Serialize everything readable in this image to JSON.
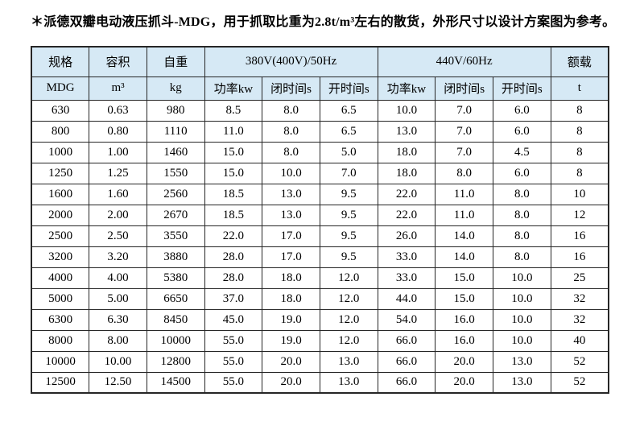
{
  "title": "＊派德双瓣电动液压抓斗-MDG，用于抓取比重为2.8t/m³左右的散货，外形尺寸以设计方案图为参考。",
  "table": {
    "group_headers": {
      "spec": "规格",
      "capacity": "容积",
      "weight": "自重",
      "v380": "380V(400V)/50Hz",
      "v440": "440V/60Hz",
      "load": "额载"
    },
    "unit_headers": {
      "spec": "MDG",
      "capacity": "m³",
      "weight": "kg",
      "v380_power": "功率kw",
      "v380_close": "闭时间s",
      "v380_open": "开时间s",
      "v440_power": "功率kw",
      "v440_close": "闭时间s",
      "v440_open": "开时间s",
      "load": "t"
    },
    "rows": [
      [
        "630",
        "0.63",
        "980",
        "8.5",
        "8.0",
        "6.5",
        "10.0",
        "7.0",
        "6.0",
        "8"
      ],
      [
        "800",
        "0.80",
        "1110",
        "11.0",
        "8.0",
        "6.5",
        "13.0",
        "7.0",
        "6.0",
        "8"
      ],
      [
        "1000",
        "1.00",
        "1460",
        "15.0",
        "8.0",
        "5.0",
        "18.0",
        "7.0",
        "4.5",
        "8"
      ],
      [
        "1250",
        "1.25",
        "1550",
        "15.0",
        "10.0",
        "7.0",
        "18.0",
        "8.0",
        "6.0",
        "8"
      ],
      [
        "1600",
        "1.60",
        "2560",
        "18.5",
        "13.0",
        "9.5",
        "22.0",
        "11.0",
        "8.0",
        "10"
      ],
      [
        "2000",
        "2.00",
        "2670",
        "18.5",
        "13.0",
        "9.5",
        "22.0",
        "11.0",
        "8.0",
        "12"
      ],
      [
        "2500",
        "2.50",
        "3550",
        "22.0",
        "17.0",
        "9.5",
        "26.0",
        "14.0",
        "8.0",
        "16"
      ],
      [
        "3200",
        "3.20",
        "3880",
        "28.0",
        "17.0",
        "9.5",
        "33.0",
        "14.0",
        "8.0",
        "16"
      ],
      [
        "4000",
        "4.00",
        "5380",
        "28.0",
        "18.0",
        "12.0",
        "33.0",
        "15.0",
        "10.0",
        "25"
      ],
      [
        "5000",
        "5.00",
        "6650",
        "37.0",
        "18.0",
        "12.0",
        "44.0",
        "15.0",
        "10.0",
        "32"
      ],
      [
        "6300",
        "6.30",
        "8450",
        "45.0",
        "19.0",
        "12.0",
        "54.0",
        "16.0",
        "10.0",
        "32"
      ],
      [
        "8000",
        "8.00",
        "10000",
        "55.0",
        "19.0",
        "12.0",
        "66.0",
        "16.0",
        "10.0",
        "40"
      ],
      [
        "10000",
        "10.00",
        "12800",
        "55.0",
        "20.0",
        "13.0",
        "66.0",
        "20.0",
        "13.0",
        "52"
      ],
      [
        "12500",
        "12.50",
        "14500",
        "55.0",
        "20.0",
        "13.0",
        "66.0",
        "20.0",
        "13.0",
        "52"
      ]
    ]
  },
  "colors": {
    "header_bg": "#d6e9f5",
    "border": "#262626",
    "text": "#000000",
    "page_bg": "#ffffff"
  }
}
